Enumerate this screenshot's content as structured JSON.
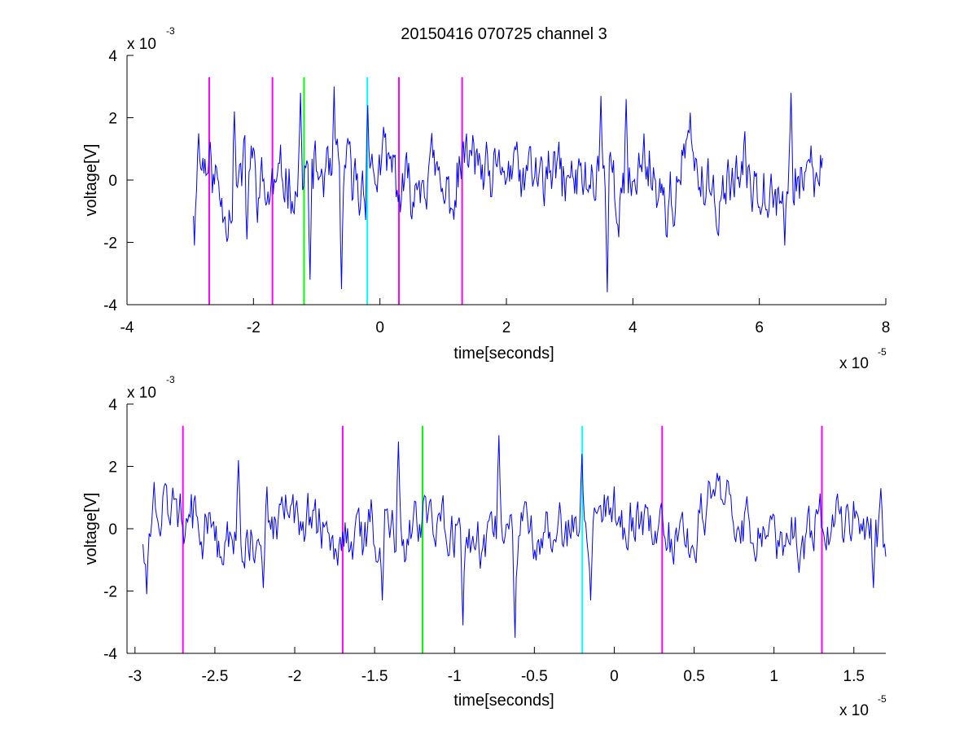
{
  "figure": {
    "title": "20150416 070725 channel 3"
  },
  "chart_data": [
    {
      "type": "line",
      "xlabel": "time[seconds]",
      "ylabel": "voltage[V]",
      "xlim": [
        -4e-05,
        8e-05
      ],
      "ylim": [
        -0.004,
        0.004
      ],
      "x_ticks": [
        -4e-05,
        -2e-05,
        0,
        2e-05,
        4e-05,
        6e-05,
        8e-05
      ],
      "x_tick_labels": [
        "-4",
        "-2",
        "0",
        "2",
        "4",
        "6",
        "8"
      ],
      "y_ticks": [
        -0.004,
        -0.002,
        0,
        0.002,
        0.004
      ],
      "y_tick_labels": [
        "-4",
        "-2",
        "0",
        "2",
        "4"
      ],
      "x_exponent": "x 10",
      "x_exponent_power": "-5",
      "y_exponent": "x 10",
      "y_exponent_power": "-3",
      "signal": {
        "color": "#0000ff",
        "x_start": -2.95e-05,
        "x_end": 7e-05,
        "samples": 600,
        "envelope_mV": 2.2,
        "noise_floor_mV": 0.8,
        "peak_points": [
          {
            "x": -2.93e-05,
            "y": -0.0021
          },
          {
            "x": -2.87e-05,
            "y": 0.0015
          },
          {
            "x": -2.3e-05,
            "y": 0.0022
          },
          {
            "x": -2.1e-05,
            "y": -0.0019
          },
          {
            "x": -1.25e-05,
            "y": 0.0028
          },
          {
            "x": -1.1e-05,
            "y": -0.0032
          },
          {
            "x": -7.2e-06,
            "y": 0.003
          },
          {
            "x": -6e-06,
            "y": -0.0035
          },
          {
            "x": -2e-06,
            "y": 0.0024
          },
          {
            "x": 3.5e-05,
            "y": 0.0027
          },
          {
            "x": 3.6e-05,
            "y": -0.0036
          },
          {
            "x": 3.9e-05,
            "y": 0.0026
          },
          {
            "x": 6.5e-05,
            "y": 0.0028
          },
          {
            "x": 6.4e-05,
            "y": -0.0021
          },
          {
            "x": 7e-05,
            "y": 0.0007
          }
        ]
      },
      "markers": [
        {
          "x": -2.7e-05,
          "color": "#ff00ff"
        },
        {
          "x": -1.7e-05,
          "color": "#ff00ff"
        },
        {
          "x": -1.2e-05,
          "color": "#00ff00"
        },
        {
          "x": -2e-06,
          "color": "#00ffff"
        },
        {
          "x": 3e-06,
          "color": "#ff00ff"
        },
        {
          "x": 1.3e-05,
          "color": "#ff00ff"
        }
      ],
      "marker_y_range": [
        -0.004,
        0.0033
      ]
    },
    {
      "type": "line",
      "xlabel": "time[seconds]",
      "ylabel": "voltage[V]",
      "xlim": [
        -3.05e-05,
        1.7e-05
      ],
      "ylim": [
        -0.004,
        0.004
      ],
      "x_ticks": [
        -3e-05,
        -2.5e-05,
        -2e-05,
        -1.5e-05,
        -1e-05,
        -5e-06,
        0,
        5e-06,
        1e-05,
        1.5e-05
      ],
      "x_tick_labels": [
        "-3",
        "-2.5",
        "-2",
        "-1.5",
        "-1",
        "-0.5",
        "0",
        "0.5",
        "1",
        "1.5"
      ],
      "y_ticks": [
        -0.004,
        -0.002,
        0,
        0.002,
        0.004
      ],
      "y_tick_labels": [
        "-4",
        "-2",
        "0",
        "2",
        "4"
      ],
      "x_exponent": "x 10",
      "x_exponent_power": "-5",
      "y_exponent": "x 10",
      "y_exponent_power": "-3",
      "signal": {
        "color": "#0000ff",
        "x_start": -2.95e-05,
        "x_end": 1.7e-05,
        "samples": 600,
        "envelope_mV": 2.0,
        "noise_floor_mV": 0.7,
        "peak_points": [
          {
            "x": -2.93e-05,
            "y": -0.0021
          },
          {
            "x": -2.88e-05,
            "y": 0.0015
          },
          {
            "x": -2.35e-05,
            "y": 0.0022
          },
          {
            "x": -2.2e-05,
            "y": -0.0019
          },
          {
            "x": -1.35e-05,
            "y": 0.0028
          },
          {
            "x": -1.45e-05,
            "y": -0.0023
          },
          {
            "x": -9.5e-06,
            "y": -0.0031
          },
          {
            "x": -7.2e-06,
            "y": 0.003
          },
          {
            "x": -6.2e-06,
            "y": -0.0035
          },
          {
            "x": -2e-06,
            "y": 0.0024
          },
          {
            "x": -1.5e-06,
            "y": -0.0023
          },
          {
            "x": 1.62e-05,
            "y": -0.0019
          },
          {
            "x": 1.67e-05,
            "y": 0.0013
          }
        ]
      },
      "markers": [
        {
          "x": -2.7e-05,
          "color": "#ff00ff"
        },
        {
          "x": -1.7e-05,
          "color": "#ff00ff"
        },
        {
          "x": -1.2e-05,
          "color": "#00ff00"
        },
        {
          "x": -2e-06,
          "color": "#00ffff"
        },
        {
          "x": 3e-06,
          "color": "#ff00ff"
        },
        {
          "x": 1.3e-05,
          "color": "#ff00ff"
        }
      ],
      "marker_y_range": [
        -0.004,
        0.0033
      ]
    }
  ]
}
